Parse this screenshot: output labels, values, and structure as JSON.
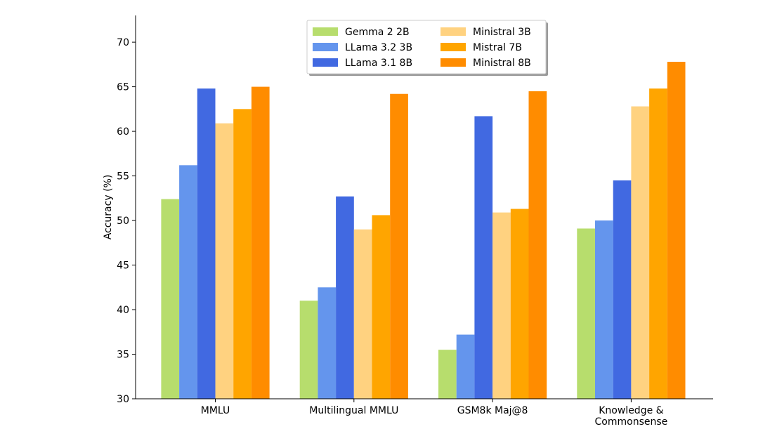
{
  "chart_data": {
    "type": "bar",
    "ylabel": "Accuracy (%)",
    "xlabel": "",
    "ylim": [
      30,
      73
    ],
    "yticks": [
      30,
      35,
      40,
      45,
      50,
      55,
      60,
      65,
      70
    ],
    "grid": false,
    "legend_position": "top-center",
    "legend_columns": 2,
    "categories": [
      [
        "MMLU"
      ],
      [
        "Multilingual MMLU"
      ],
      [
        "GSM8k Maj@8"
      ],
      [
        "Knowledge &",
        "Commonsense"
      ]
    ],
    "series": [
      {
        "name": "Gemma 2 2B",
        "color": "#b7dd6d",
        "values": [
          52.4,
          41.0,
          35.5,
          49.1
        ]
      },
      {
        "name": "LLama 3.2 3B",
        "color": "#6495ed",
        "values": [
          56.2,
          42.5,
          37.2,
          50.0
        ]
      },
      {
        "name": "LLama 3.1 8B",
        "color": "#4169e1",
        "values": [
          64.8,
          52.7,
          61.7,
          54.5
        ]
      },
      {
        "name": "Ministral 3B",
        "color": "#ffd280",
        "values": [
          60.9,
          49.0,
          50.9,
          62.8
        ]
      },
      {
        "name": "Mistral 7B",
        "color": "#ffa500",
        "values": [
          62.5,
          50.6,
          51.3,
          64.8
        ]
      },
      {
        "name": "Ministral 8B",
        "color": "#ff8c00",
        "values": [
          65.0,
          64.2,
          64.5,
          67.8
        ]
      }
    ]
  }
}
